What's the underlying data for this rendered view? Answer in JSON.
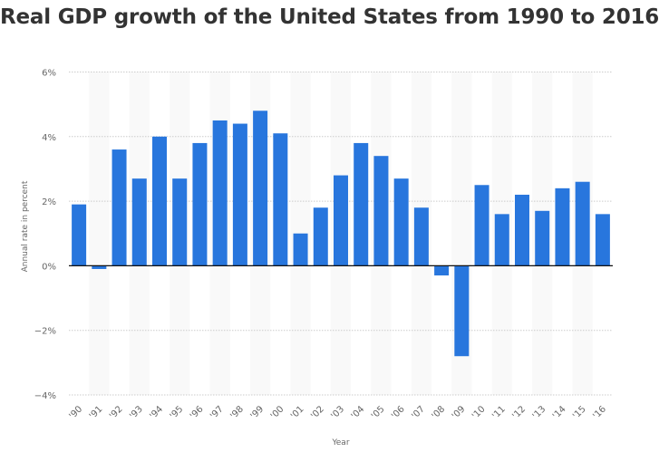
{
  "chart_data": {
    "type": "bar",
    "title": "Real GDP growth of the United States from 1990 to 2016",
    "xlabel": "Year",
    "ylabel": "Annual rate in percent",
    "categories": [
      "'90",
      "'91",
      "'92",
      "'93",
      "'94",
      "'95",
      "'96",
      "'97",
      "'98",
      "'99",
      "'00",
      "'01",
      "'02",
      "'03",
      "'04",
      "'05",
      "'06",
      "'07",
      "'08",
      "'09",
      "'10",
      "'11",
      "'12",
      "'13",
      "'14",
      "'15",
      "'16"
    ],
    "values": [
      1.9,
      -0.1,
      3.6,
      2.7,
      4.0,
      2.7,
      3.8,
      4.5,
      4.4,
      4.8,
      4.1,
      1.0,
      1.8,
      2.8,
      3.8,
      3.4,
      2.7,
      1.8,
      -0.3,
      -2.8,
      2.5,
      1.6,
      2.2,
      1.7,
      2.4,
      2.6,
      1.6
    ],
    "ylim": [
      -4,
      6
    ],
    "yticks": [
      6,
      4,
      2,
      0,
      -2,
      -4
    ],
    "ytick_labels": [
      "6%",
      "4%",
      "2%",
      "0%",
      "−2%",
      "−4%"
    ],
    "grid": true,
    "bar_color": "#2876dd",
    "band_color": "#f9f9f9"
  }
}
